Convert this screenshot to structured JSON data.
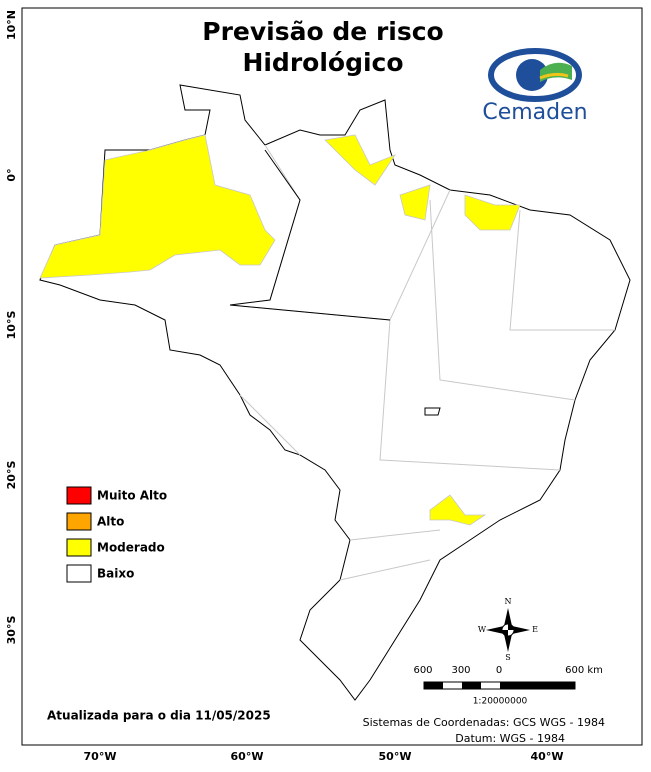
{
  "header": {
    "title_line1": "Previsão de risco",
    "title_line2": "Hidrológico",
    "logo": "Cemaden"
  },
  "legend": [
    {
      "label": "Muito Alto",
      "color": "#ff0000"
    },
    {
      "label": "Alto",
      "color": "#ffa500"
    },
    {
      "label": "Moderado",
      "color": "#ffff00"
    },
    {
      "label": "Baixo",
      "color": "#ffffff"
    }
  ],
  "axes": {
    "latitudes": [
      "10°N",
      "0°",
      "10°S",
      "20°S",
      "30°S"
    ],
    "longitudes": [
      "70°W",
      "60°W",
      "50°W",
      "40°W"
    ]
  },
  "compass": {
    "n": "N",
    "s": "S",
    "e": "E",
    "w": "W"
  },
  "scale": {
    "labels": [
      "600",
      "300",
      "0",
      "600 km"
    ],
    "ratio": "1:20000000"
  },
  "footer": {
    "updated": "Atualizada para o dia 11/05/2025",
    "coords": "Sistemas de Coordenadas: GCS WGS - 1984",
    "datum": "Datum: WGS - 1984"
  }
}
